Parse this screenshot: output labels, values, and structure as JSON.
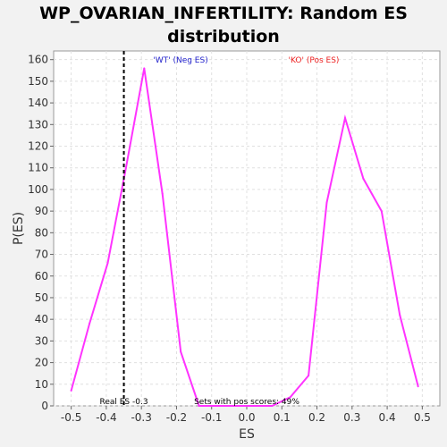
{
  "chart_data": {
    "type": "line",
    "title": "WP_OVARIAN_INFERTILITY: Random ES distribution",
    "xlabel": "ES",
    "ylabel": "P(ES)",
    "xlim": [
      -0.55,
      0.55
    ],
    "ylim": [
      0,
      164
    ],
    "xticks": [
      -0.5,
      -0.4,
      -0.3,
      -0.2,
      -0.1,
      0.0,
      0.1,
      0.2,
      0.3,
      0.4,
      0.5
    ],
    "xtick_labels": [
      "-0.5",
      "-0.4",
      "-0.3",
      "-0.2",
      "-0.1",
      "0.0",
      "0.1",
      "0.2",
      "0.3",
      "0.4",
      "0.5"
    ],
    "yticks": [
      0,
      10,
      20,
      30,
      40,
      50,
      60,
      70,
      80,
      90,
      100,
      110,
      120,
      130,
      140,
      150,
      160
    ],
    "grid": true,
    "series": [
      {
        "color": "#ff33ff",
        "x": [
          -0.5,
          -0.448,
          -0.396,
          -0.344,
          -0.292,
          -0.24,
          -0.188,
          -0.136,
          -0.084,
          -0.032,
          0.02,
          0.072,
          0.124,
          0.176,
          0.228,
          0.28,
          0.332,
          0.384,
          0.436,
          0.488
        ],
        "y": [
          7,
          38,
          66,
          110,
          156,
          98,
          25,
          0,
          0,
          0,
          0,
          0,
          4,
          14,
          94,
          133,
          105,
          90,
          42,
          9
        ]
      }
    ],
    "real_es": {
      "x": -0.35,
      "label": "Real ES -0.3"
    },
    "annotations": {
      "neg": {
        "text": "'WT' (Neg ES)",
        "color": "#2222cc"
      },
      "pos": {
        "text": "'KO' (Pos ES)",
        "color": "#ee2222"
      },
      "sets": {
        "text": "Sets with pos scores: 49%"
      }
    }
  }
}
